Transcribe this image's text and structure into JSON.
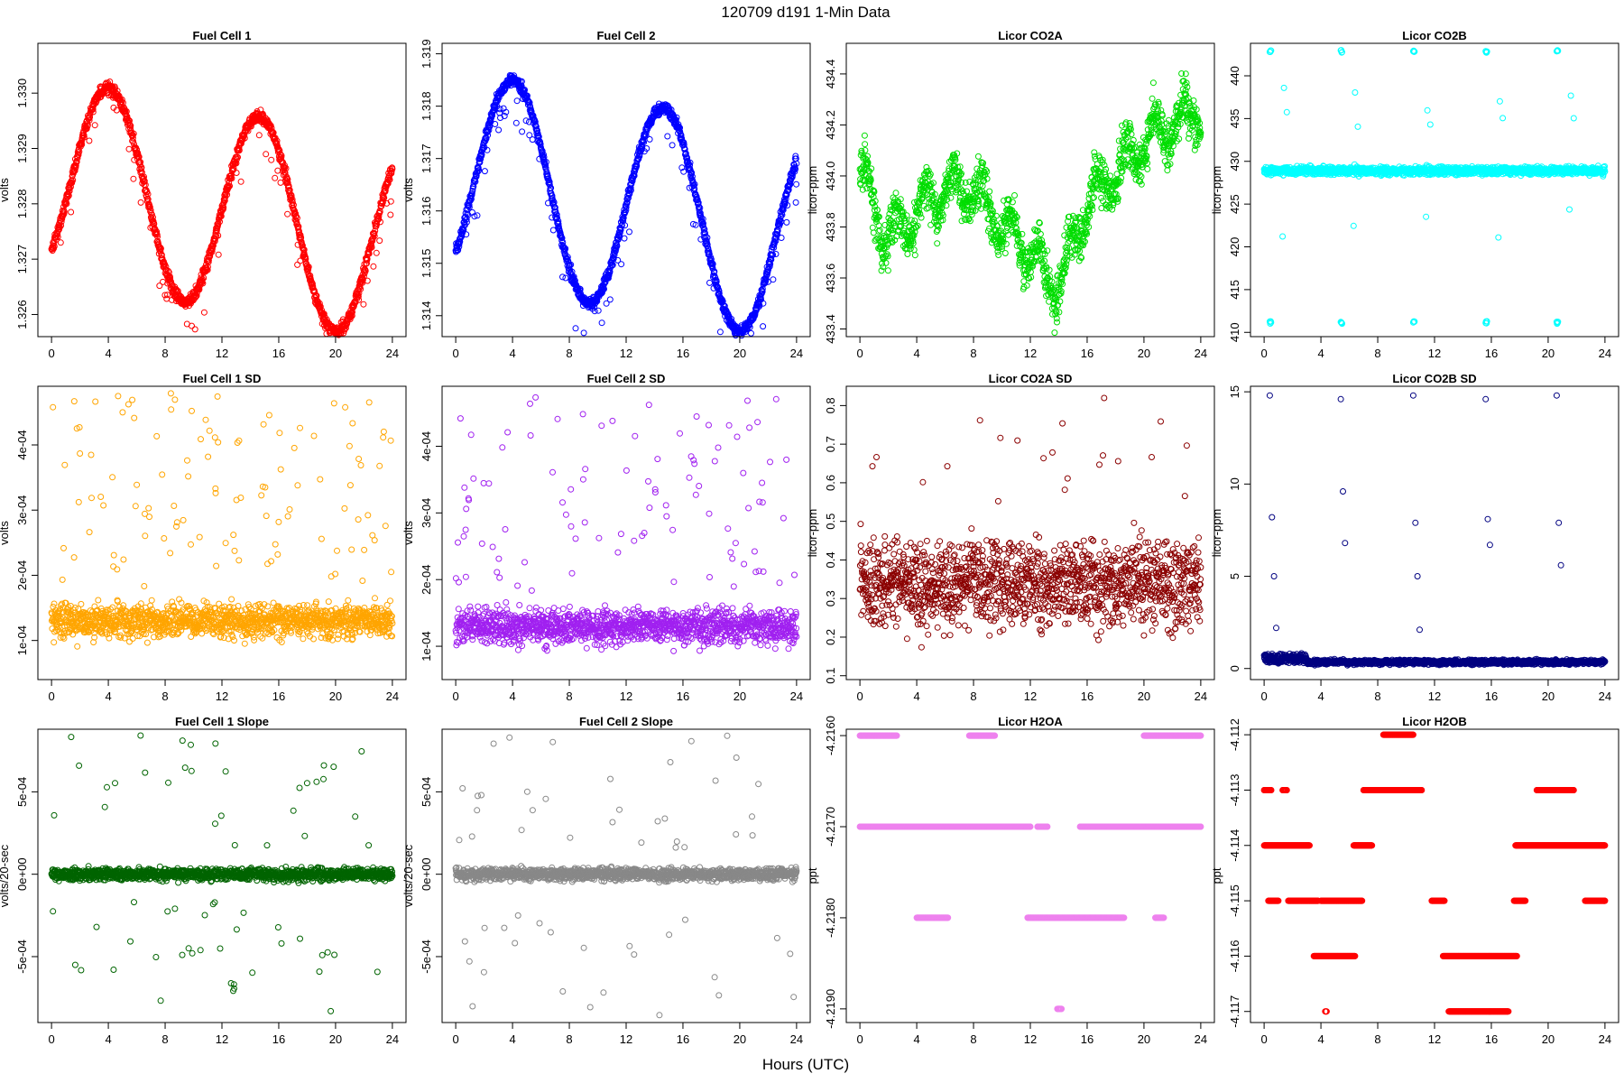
{
  "page": {
    "title": "120709   d191   1-Min Data",
    "xlabel": "Hours (UTC)"
  },
  "chart_data": [
    {
      "type": "scatter",
      "title": "Fuel Cell 1",
      "ylabel": "volts",
      "color": "#ff0000",
      "xlim": [
        -0.96,
        24.96
      ],
      "ylim": [
        1.3256,
        1.3309
      ],
      "xticks": [
        0,
        4,
        8,
        12,
        16,
        20,
        24
      ],
      "xtick_labels": [
        "0",
        "4",
        "8",
        "12",
        "16",
        "20",
        "24"
      ],
      "yticks": [
        1.326,
        1.327,
        1.328,
        1.329,
        1.33
      ],
      "ytick_labels": [
        "1.326",
        "1.327",
        "1.328",
        "1.329",
        "1.330"
      ],
      "model": "sine",
      "params": {
        "base": 1.3285,
        "amp": 0.0018,
        "phase": 0,
        "period": 10.6,
        "trend": -5e-05,
        "noise": 0.0001,
        "outlier_rate": 0.05,
        "outlier_size": 0.0008,
        "outlier_dir": -1,
        "n": 1440
      }
    },
    {
      "type": "scatter",
      "title": "Fuel Cell 2",
      "ylabel": "volts",
      "color": "#0000ff",
      "xlim": [
        -0.96,
        24.96
      ],
      "ylim": [
        1.3136,
        1.3192
      ],
      "xticks": [
        0,
        4,
        8,
        12,
        16,
        20,
        24
      ],
      "xtick_labels": [
        "0",
        "4",
        "8",
        "12",
        "16",
        "20",
        "24"
      ],
      "yticks": [
        1.314,
        1.315,
        1.316,
        1.317,
        1.318,
        1.319
      ],
      "ytick_labels": [
        "1.314",
        "1.315",
        "1.316",
        "1.317",
        "1.318",
        "1.319"
      ],
      "model": "sine",
      "params": {
        "base": 1.3167,
        "amp": 0.002,
        "phase": 0,
        "period": 10.6,
        "trend": -5e-05,
        "noise": 0.0001,
        "outlier_rate": 0.05,
        "outlier_size": 0.0008,
        "outlier_dir": -1,
        "n": 1440
      }
    },
    {
      "type": "scatter",
      "title": "Licor CO2A",
      "ylabel": "licor-ppm",
      "color": "#00dd00",
      "xlim": [
        -0.96,
        24.96
      ],
      "ylim": [
        433.37,
        434.52
      ],
      "xticks": [
        0,
        4,
        8,
        12,
        16,
        20,
        24
      ],
      "xtick_labels": [
        "0",
        "4",
        "8",
        "12",
        "16",
        "20",
        "24"
      ],
      "yticks": [
        433.4,
        433.6,
        433.8,
        434.0,
        434.2,
        434.4
      ],
      "ytick_labels": [
        "433.4",
        "433.6",
        "433.8",
        "434.0",
        "434.2",
        "434.4"
      ],
      "model": "walk",
      "params": {
        "knots": [
          [
            0,
            434.0
          ],
          [
            2,
            433.75
          ],
          [
            4,
            433.85
          ],
          [
            6,
            433.95
          ],
          [
            8,
            433.95
          ],
          [
            10,
            433.8
          ],
          [
            12,
            433.7
          ],
          [
            14,
            433.55
          ],
          [
            16,
            433.9
          ],
          [
            18,
            434.0
          ],
          [
            20,
            434.15
          ],
          [
            22,
            434.2
          ],
          [
            24,
            434.25
          ]
        ],
        "noise": 0.09,
        "outlier_rate": 0.0,
        "outlier_size": 0,
        "outlier_dir": 1,
        "n": 1440
      }
    },
    {
      "type": "scatter",
      "title": "Licor CO2B",
      "ylabel": "licor-ppm",
      "color": "#00ffff",
      "xlim": [
        -0.96,
        24.96
      ],
      "ylim": [
        409.5,
        443.8
      ],
      "xticks": [
        0,
        4,
        8,
        12,
        16,
        20,
        24
      ],
      "xtick_labels": [
        "0",
        "4",
        "8",
        "12",
        "16",
        "20",
        "24"
      ],
      "yticks": [
        410,
        415,
        420,
        425,
        430,
        435,
        440
      ],
      "ytick_labels": [
        "410",
        "415",
        "420",
        "425",
        "430",
        "435",
        "440"
      ],
      "model": "spikes",
      "params": {
        "base": 428.9,
        "noise": 0.45,
        "spike_hours": [
          0.4,
          5.4,
          10.5,
          15.6,
          20.6
        ],
        "spike_high": 443.0,
        "spike_low": 411.0,
        "n": 1440
      }
    },
    {
      "type": "scatter",
      "title": "Fuel Cell 1 SD",
      "ylabel": "volts",
      "color": "#ffa500",
      "xlim": [
        -0.96,
        24.96
      ],
      "ylim": [
        4e-05,
        0.00049
      ],
      "xticks": [
        0,
        4,
        8,
        12,
        16,
        20,
        24
      ],
      "xtick_labels": [
        "0",
        "4",
        "8",
        "12",
        "16",
        "20",
        "24"
      ],
      "yticks": [
        0.0001,
        0.0002,
        0.0003,
        0.0004
      ],
      "ytick_labels": [
        "1e-04",
        "2e-04",
        "3e-04",
        "4e-04"
      ],
      "model": "band",
      "params": {
        "base": 0.00013,
        "noise": 2.5e-05,
        "outlier_rate": 0.07,
        "outlier_min": 0.00018,
        "outlier_max": 0.00048,
        "n": 1440
      }
    },
    {
      "type": "scatter",
      "title": "Fuel Cell 2 SD",
      "ylabel": "volts",
      "color": "#a020f0",
      "xlim": [
        -0.96,
        24.96
      ],
      "ylim": [
        5e-05,
        0.00049
      ],
      "xticks": [
        0,
        4,
        8,
        12,
        16,
        20,
        24
      ],
      "xtick_labels": [
        "0",
        "4",
        "8",
        "12",
        "16",
        "20",
        "24"
      ],
      "yticks": [
        0.0001,
        0.0002,
        0.0003,
        0.0004
      ],
      "ytick_labels": [
        "1e-04",
        "2e-04",
        "3e-04",
        "4e-04"
      ],
      "model": "band",
      "params": {
        "base": 0.00013,
        "noise": 2.5e-05,
        "outlier_rate": 0.07,
        "outlier_min": 0.00018,
        "outlier_max": 0.00048,
        "n": 1440
      }
    },
    {
      "type": "scatter",
      "title": "Licor CO2A SD",
      "ylabel": "licor-ppm",
      "color": "#8b0000",
      "xlim": [
        -0.96,
        24.96
      ],
      "ylim": [
        0.09,
        0.85
      ],
      "xticks": [
        0,
        4,
        8,
        12,
        16,
        20,
        24
      ],
      "xtick_labels": [
        "0",
        "4",
        "8",
        "12",
        "16",
        "20",
        "24"
      ],
      "yticks": [
        0.1,
        0.2,
        0.3,
        0.4,
        0.5,
        0.6,
        0.7,
        0.8
      ],
      "ytick_labels": [
        "0.1",
        "0.2",
        "0.3",
        "0.4",
        "0.5",
        "0.6",
        "0.7",
        "0.8"
      ],
      "model": "band",
      "params": {
        "base": 0.34,
        "noise": 0.11,
        "outlier_rate": 0.02,
        "outlier_min": 0.55,
        "outlier_max": 0.83,
        "n": 1440
      }
    },
    {
      "type": "scatter",
      "title": "Licor CO2B SD",
      "ylabel": "licor-ppm",
      "color": "#000080",
      "xlim": [
        -0.96,
        24.96
      ],
      "ylim": [
        -0.6,
        15.3
      ],
      "xticks": [
        0,
        4,
        8,
        12,
        16,
        20,
        24
      ],
      "xtick_labels": [
        "0",
        "4",
        "8",
        "12",
        "16",
        "20",
        "24"
      ],
      "yticks": [
        0,
        5,
        10,
        15
      ],
      "ytick_labels": [
        "0",
        "5",
        "10",
        "15"
      ],
      "model": "sdspikes",
      "params": {
        "base": 0.35,
        "noise": 0.12,
        "spike_hours": [
          0.4,
          5.4,
          10.5,
          15.6,
          20.6
        ],
        "spike_values": [
          [
            14.8,
            8.2,
            5.0,
            2.2
          ],
          [
            14.6,
            9.6,
            6.8
          ],
          [
            14.8,
            7.9,
            5.0,
            2.1
          ],
          [
            14.6,
            8.1,
            6.7
          ],
          [
            14.8,
            7.9,
            5.6
          ]
        ],
        "n": 1440
      }
    },
    {
      "type": "scatter",
      "title": "Fuel Cell 1 Slope",
      "ylabel": "volts/20-sec",
      "color": "#006400",
      "xlim": [
        -0.96,
        24.96
      ],
      "ylim": [
        -0.0009,
        0.00088
      ],
      "xticks": [
        0,
        4,
        8,
        12,
        16,
        20,
        24
      ],
      "xtick_labels": [
        "0",
        "4",
        "8",
        "12",
        "16",
        "20",
        "24"
      ],
      "yticks": [
        -0.0005,
        0,
        0.0005
      ],
      "ytick_labels": [
        "-5e-04",
        "0e+00",
        "5e-04"
      ],
      "model": "slope",
      "params": {
        "noise": 3.5e-05,
        "outlier_rate": 0.045,
        "outlier_max": 0.00086,
        "n": 1440
      }
    },
    {
      "type": "scatter",
      "title": "Fuel Cell 2 Slope",
      "ylabel": "volts/20-sec",
      "color": "#888888",
      "xlim": [
        -0.96,
        24.96
      ],
      "ylim": [
        -0.0009,
        0.00088
      ],
      "xticks": [
        0,
        4,
        8,
        12,
        16,
        20,
        24
      ],
      "xtick_labels": [
        "0",
        "4",
        "8",
        "12",
        "16",
        "20",
        "24"
      ],
      "yticks": [
        -0.0005,
        0,
        0.0005
      ],
      "ytick_labels": [
        "-5e-04",
        "0e+00",
        "5e-04"
      ],
      "model": "slope",
      "params": {
        "noise": 3.5e-05,
        "outlier_rate": 0.045,
        "outlier_max": 0.00086,
        "n": 1440
      }
    },
    {
      "type": "scatter",
      "title": "Licor H2OA",
      "ylabel": "ppt",
      "color": "#ee82ee",
      "xlim": [
        -0.96,
        24.96
      ],
      "ylim": [
        -4.21915,
        -4.21593
      ],
      "xticks": [
        0,
        4,
        8,
        12,
        16,
        20,
        24
      ],
      "xtick_labels": [
        "0",
        "4",
        "8",
        "12",
        "16",
        "20",
        "24"
      ],
      "yticks": [
        -4.216,
        -4.217,
        -4.218,
        -4.219
      ],
      "ytick_labels": [
        "-4.2160",
        "-4.2170",
        "-4.2180",
        "-4.2190"
      ],
      "model": "levels",
      "params": {
        "segments": [
          [
            0,
            1,
            -4.216
          ],
          [
            1,
            2.6,
            -4.216
          ],
          [
            7.7,
            9.5,
            -4.216
          ],
          [
            20.0,
            24,
            -4.216
          ],
          [
            0,
            12,
            -4.217
          ],
          [
            12.5,
            13.2,
            -4.217
          ],
          [
            15.5,
            24,
            -4.217
          ],
          [
            4.0,
            6.2,
            -4.218
          ],
          [
            11.8,
            18.6,
            -4.218
          ],
          [
            20.8,
            21.4,
            -4.218
          ],
          [
            13.9,
            14.2,
            -4.219
          ]
        ],
        "n": 1440
      }
    },
    {
      "type": "scatter",
      "title": "Licor H2OB",
      "ylabel": "ppt",
      "color": "#ff0000",
      "xlim": [
        -0.96,
        24.96
      ],
      "ylim": [
        -4.1172,
        -4.1119
      ],
      "xticks": [
        0,
        4,
        8,
        12,
        16,
        20,
        24
      ],
      "xtick_labels": [
        "0",
        "4",
        "8",
        "12",
        "16",
        "20",
        "24"
      ],
      "yticks": [
        -4.112,
        -4.113,
        -4.114,
        -4.115,
        -4.116,
        -4.117
      ],
      "ytick_labels": [
        "-4.112",
        "-4.113",
        "-4.114",
        "-4.115",
        "-4.116",
        "-4.117"
      ],
      "model": "levels",
      "params": {
        "segments": [
          [
            8.4,
            10.5,
            -4.112
          ],
          [
            0,
            0.5,
            -4.113
          ],
          [
            1.3,
            1.6,
            -4.113
          ],
          [
            7.0,
            11.1,
            -4.113
          ],
          [
            19.2,
            21.8,
            -4.113
          ],
          [
            0,
            3.2,
            -4.114
          ],
          [
            6.3,
            7.6,
            -4.114
          ],
          [
            17.7,
            24,
            -4.114
          ],
          [
            0.3,
            1.0,
            -4.115
          ],
          [
            1.7,
            3.8,
            -4.115
          ],
          [
            4.0,
            6.9,
            -4.115
          ],
          [
            11.8,
            12.7,
            -4.115
          ],
          [
            17.6,
            18.4,
            -4.115
          ],
          [
            22.6,
            24,
            -4.115
          ],
          [
            3.5,
            6.4,
            -4.116
          ],
          [
            12.6,
            17.8,
            -4.116
          ],
          [
            13.0,
            17.2,
            -4.117
          ],
          [
            4.3,
            4.4,
            -4.117
          ]
        ],
        "n": 1440
      }
    }
  ]
}
